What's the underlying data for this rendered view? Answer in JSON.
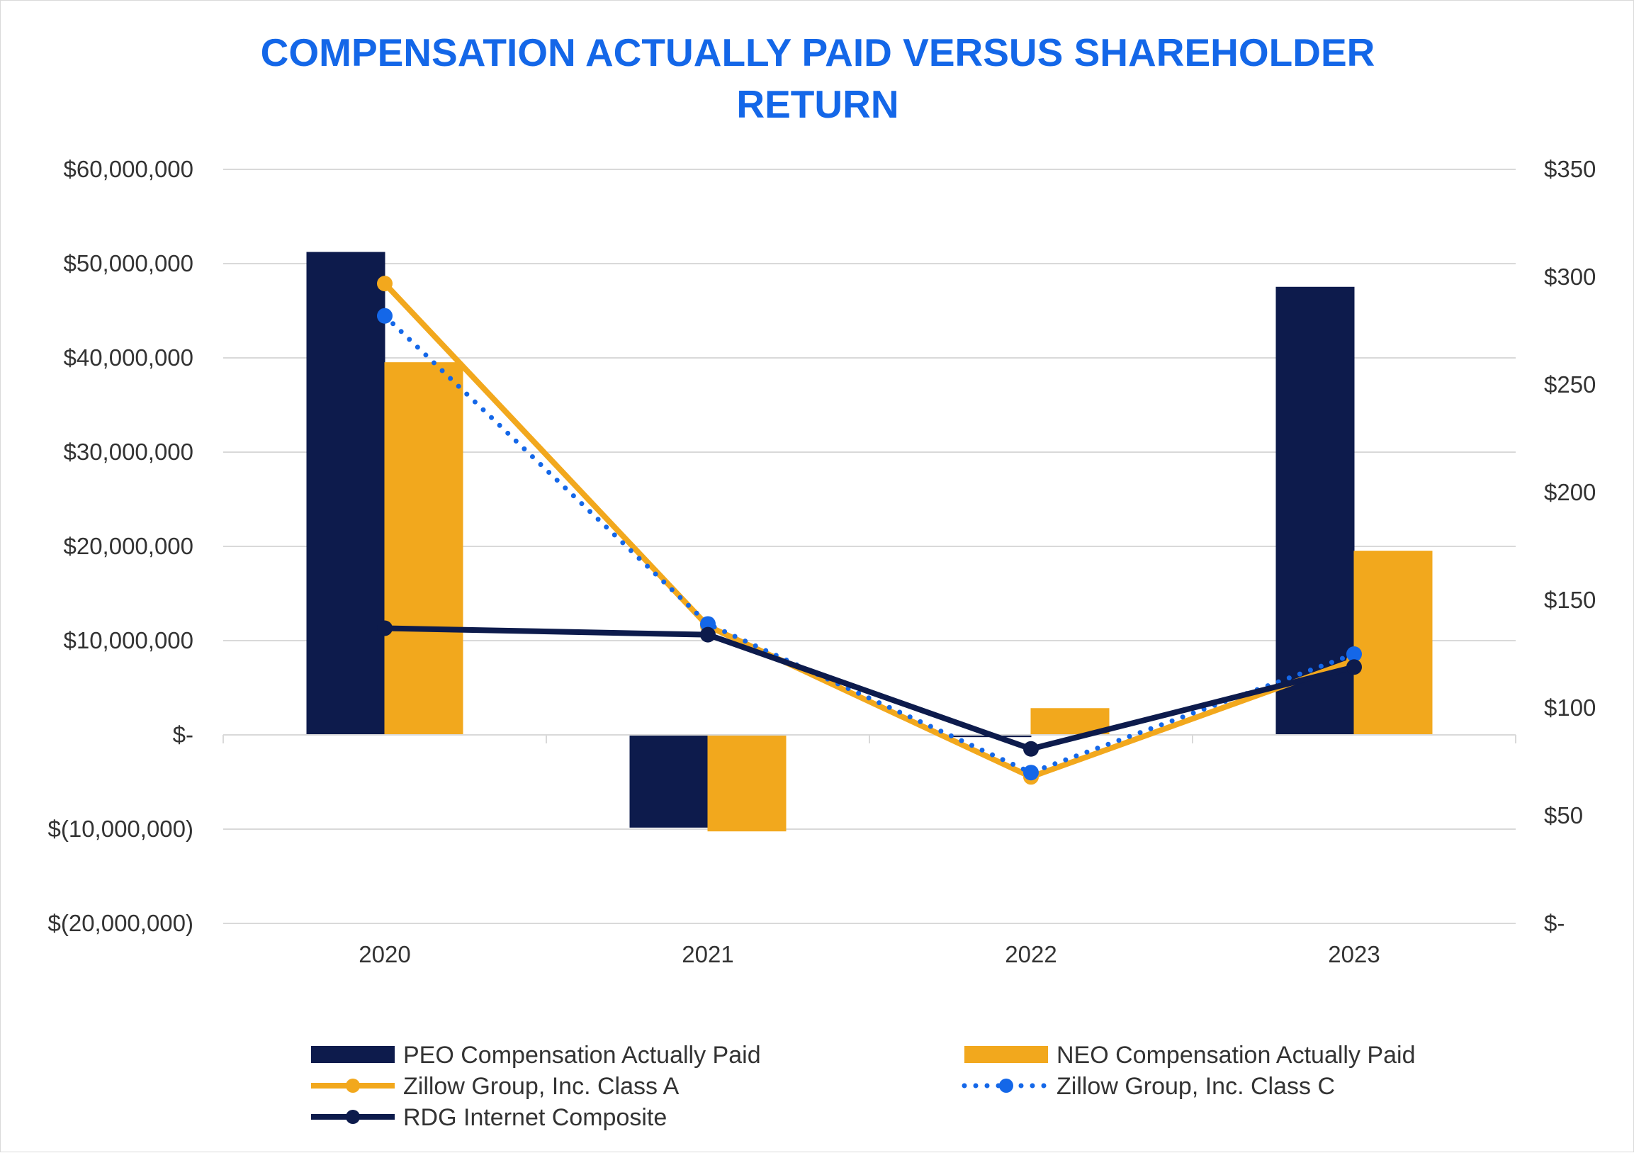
{
  "chart_data": {
    "type": "bar",
    "title_lines": [
      "COMPENSATION ACTUALLY PAID VERSUS SHAREHOLDER",
      "RETURN"
    ],
    "categories": [
      "2020",
      "2021",
      "2022",
      "2023"
    ],
    "y_left": {
      "min": -20000000,
      "max": 60000000,
      "step": 10000000,
      "tick_labels": [
        "$(20,000,000)",
        "$(10,000,000)",
        "$-",
        "$10,000,000",
        "$20,000,000",
        "$30,000,000",
        "$40,000,000",
        "$50,000,000",
        "$60,000,000"
      ]
    },
    "y_right": {
      "min": 0,
      "max": 350,
      "step": 50,
      "tick_labels": [
        "$-",
        "$50",
        "$100",
        "$150",
        "$200",
        "$250",
        "$300",
        "$350"
      ]
    },
    "grid": true,
    "legend_position": "bottom",
    "bar_series": [
      {
        "name": "PEO Compensation Actually Paid",
        "color": "#0d1b4c",
        "values": [
          51200000,
          -9800000,
          -200000,
          47500000
        ]
      },
      {
        "name": "NEO Compensation Actually Paid",
        "color": "#f2a81d",
        "values": [
          39500000,
          -10200000,
          2800000,
          19500000
        ]
      }
    ],
    "line_series": [
      {
        "name": "Zillow Group, Inc. Class A",
        "color": "#f2a81d",
        "style": "solid",
        "values": [
          297,
          138,
          68,
          122
        ]
      },
      {
        "name": "Zillow Group, Inc. Class C",
        "color": "#1467e8",
        "style": "dotted",
        "values": [
          282,
          139,
          70,
          125
        ]
      },
      {
        "name": "RDG Internet Composite",
        "color": "#0d1b4c",
        "style": "solid",
        "values": [
          137,
          134,
          81,
          119
        ]
      }
    ]
  }
}
